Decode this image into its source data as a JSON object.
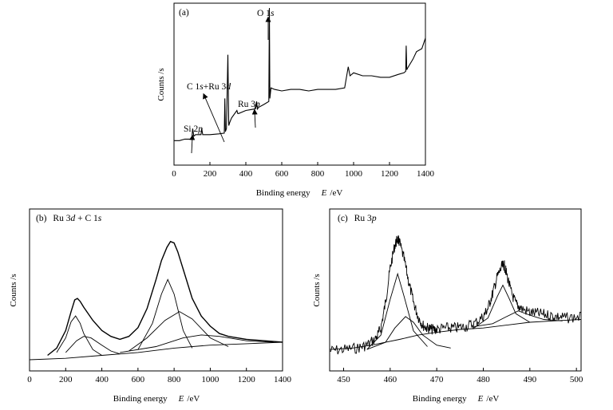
{
  "chart_data": [
    {
      "panel": "(a)",
      "type": "line",
      "title": "",
      "xlabel": "Binding energy",
      "xlabel_symbol": "E",
      "xlabel_unit": "/eV",
      "ylabel": "Counts /s",
      "xlim": [
        0,
        1400
      ],
      "xticks": [
        0,
        200,
        400,
        600,
        800,
        1000,
        1200,
        1400
      ],
      "yticks_shown": false,
      "series": [
        {
          "x": [
            0,
            30,
            60,
            90,
            100,
            104,
            110,
            120,
            150,
            154,
            160,
            200,
            250,
            280,
            283,
            286,
            292,
            300,
            305,
            310,
            320,
            350,
            355,
            360,
            400,
            450,
            460,
            465,
            470,
            500,
            528,
            531,
            534,
            540,
            560,
            600,
            650,
            700,
            750,
            800,
            850,
            900,
            950,
            970,
            980,
            1000,
            1050,
            1100,
            1150,
            1200,
            1250,
            1280,
            1290,
            1293,
            1296,
            1300,
            1330,
            1350,
            1380,
            1400
          ],
          "y": [
            0.12,
            0.12,
            0.13,
            0.13,
            0.145,
            0.2,
            0.15,
            0.16,
            0.16,
            0.2,
            0.16,
            0.16,
            0.165,
            0.17,
            0.4,
            0.18,
            0.2,
            0.69,
            0.22,
            0.24,
            0.27,
            0.32,
            0.3,
            0.3,
            0.32,
            0.33,
            0.38,
            0.33,
            0.34,
            0.36,
            0.38,
            1.0,
            0.4,
            0.47,
            0.46,
            0.45,
            0.46,
            0.46,
            0.45,
            0.46,
            0.46,
            0.46,
            0.47,
            0.61,
            0.55,
            0.57,
            0.55,
            0.55,
            0.54,
            0.54,
            0.56,
            0.57,
            0.58,
            0.75,
            0.59,
            0.6,
            0.66,
            0.71,
            0.73,
            0.8
          ]
        }
      ],
      "annotations": [
        {
          "parts": [
            "Si 2",
            "p"
          ],
          "x": 100
        },
        {
          "parts": [
            "C 1",
            "s",
            "+Ru 3",
            "d"
          ],
          "x": 284
        },
        {
          "parts": [
            "Ru 3",
            "p"
          ],
          "x": 462
        },
        {
          "parts": [
            "O 1",
            "s"
          ],
          "x": 531
        }
      ]
    },
    {
      "panel": "(b)",
      "label_parts": [
        "Ru 3",
        "d",
        " + C 1",
        "s"
      ],
      "type": "line",
      "title": "",
      "xlabel": "Binding energy",
      "xlabel_symbol": "E",
      "xlabel_unit": "/eV",
      "ylabel": "Counts /s",
      "xlim": [
        0,
        1400
      ],
      "xticks": [
        0,
        200,
        400,
        600,
        800,
        1000,
        1200,
        1400
      ],
      "yticks_shown": false,
      "series": [
        {
          "name": "",
          "x": [
            100,
            150,
            200,
            230,
            250,
            265,
            280,
            300,
            350,
            400,
            450,
            500,
            550,
            600,
            650,
            700,
            730,
            760,
            780,
            800,
            820,
            850,
            900,
            950,
            1000,
            1050,
            1100,
            1150,
            1200,
            1300,
            1400
          ],
          "y": [
            0.03,
            0.08,
            0.2,
            0.33,
            0.41,
            0.42,
            0.4,
            0.36,
            0.27,
            0.2,
            0.16,
            0.14,
            0.16,
            0.22,
            0.35,
            0.55,
            0.68,
            0.77,
            0.81,
            0.8,
            0.74,
            0.62,
            0.42,
            0.3,
            0.23,
            0.18,
            0.16,
            0.15,
            0.14,
            0.13,
            0.12
          ]
        },
        {
          "name": "",
          "x": [
            150,
            200,
            230,
            255,
            280,
            300,
            350,
            400
          ],
          "y": [
            0.05,
            0.15,
            0.26,
            0.3,
            0.25,
            0.18,
            0.07,
            0.03
          ]
        },
        {
          "name": "",
          "x": [
            200,
            260,
            300,
            340,
            400,
            450,
            500
          ],
          "y": [
            0.05,
            0.13,
            0.16,
            0.15,
            0.1,
            0.06,
            0.04
          ]
        },
        {
          "name": "",
          "x": [
            600,
            680,
            730,
            765,
            800,
            850,
            900
          ],
          "y": [
            0.07,
            0.25,
            0.45,
            0.55,
            0.45,
            0.2,
            0.08
          ]
        },
        {
          "name": "",
          "x": [
            550,
            650,
            750,
            830,
            900,
            1000,
            1100
          ],
          "y": [
            0.06,
            0.15,
            0.27,
            0.33,
            0.28,
            0.15,
            0.09
          ]
        },
        {
          "name": "",
          "x": [
            500,
            700,
            850,
            950,
            1050,
            1200,
            1350
          ],
          "y": [
            0.05,
            0.09,
            0.15,
            0.17,
            0.16,
            0.13,
            0.12
          ]
        },
        {
          "name": "",
          "x": [
            0,
            200,
            400,
            600,
            800,
            1000,
            1200,
            1400
          ],
          "y": [
            0.0,
            0.01,
            0.03,
            0.05,
            0.08,
            0.1,
            0.11,
            0.12
          ]
        }
      ]
    },
    {
      "panel": "(c)",
      "label_parts": [
        "Ru 3",
        "p"
      ],
      "type": "line",
      "title": "",
      "xlabel": "Binding energy",
      "xlabel_symbol": "E",
      "xlabel_unit": "/eV",
      "ylabel": "Counts /s",
      "xlim": [
        447,
        501
      ],
      "xticks": [
        450,
        460,
        470,
        480,
        490,
        500
      ],
      "yticks_shown": false,
      "series": [
        {
          "name": "",
          "x": [
            447,
            450,
            453,
            455,
            457,
            458,
            459,
            460,
            461,
            461.6,
            462,
            463,
            464,
            465,
            466,
            467,
            468,
            469,
            470,
            472,
            474,
            476,
            478,
            480,
            481,
            482,
            483,
            484,
            484.5,
            485,
            486,
            487,
            488,
            490,
            492,
            494,
            496,
            498,
            501
          ],
          "y": [
            0.04,
            0.05,
            0.06,
            0.08,
            0.13,
            0.2,
            0.38,
            0.62,
            0.78,
            0.82,
            0.8,
            0.68,
            0.52,
            0.38,
            0.28,
            0.22,
            0.2,
            0.19,
            0.19,
            0.2,
            0.2,
            0.21,
            0.23,
            0.28,
            0.34,
            0.44,
            0.56,
            0.63,
            0.64,
            0.58,
            0.45,
            0.37,
            0.34,
            0.31,
            0.3,
            0.29,
            0.28,
            0.27,
            0.28
          ]
        },
        {
          "name": "",
          "x": [
            455,
            458,
            460,
            461.6,
            463,
            465,
            468
          ],
          "y": [
            0.05,
            0.15,
            0.4,
            0.58,
            0.42,
            0.18,
            0.07
          ]
        },
        {
          "name": "",
          "x": [
            455,
            459,
            461,
            463.3,
            465,
            467,
            470,
            473
          ],
          "y": [
            0.05,
            0.1,
            0.2,
            0.28,
            0.24,
            0.15,
            0.08,
            0.06
          ]
        },
        {
          "name": "",
          "x": [
            478,
            481,
            483,
            484.2,
            485.5,
            487,
            490
          ],
          "y": [
            0.2,
            0.27,
            0.42,
            0.5,
            0.41,
            0.3,
            0.24
          ]
        },
        {
          "name": "",
          "x": [
            478,
            482,
            485,
            487.5,
            490,
            493,
            497
          ],
          "y": [
            0.21,
            0.23,
            0.28,
            0.32,
            0.29,
            0.26,
            0.25
          ]
        },
        {
          "name": "",
          "x": [
            447,
            452,
            456,
            459,
            462,
            466,
            470,
            475,
            480,
            485,
            490,
            495,
            501
          ],
          "y": [
            0.05,
            0.06,
            0.08,
            0.1,
            0.12,
            0.15,
            0.17,
            0.19,
            0.2,
            0.22,
            0.24,
            0.25,
            0.26
          ]
        }
      ]
    }
  ]
}
